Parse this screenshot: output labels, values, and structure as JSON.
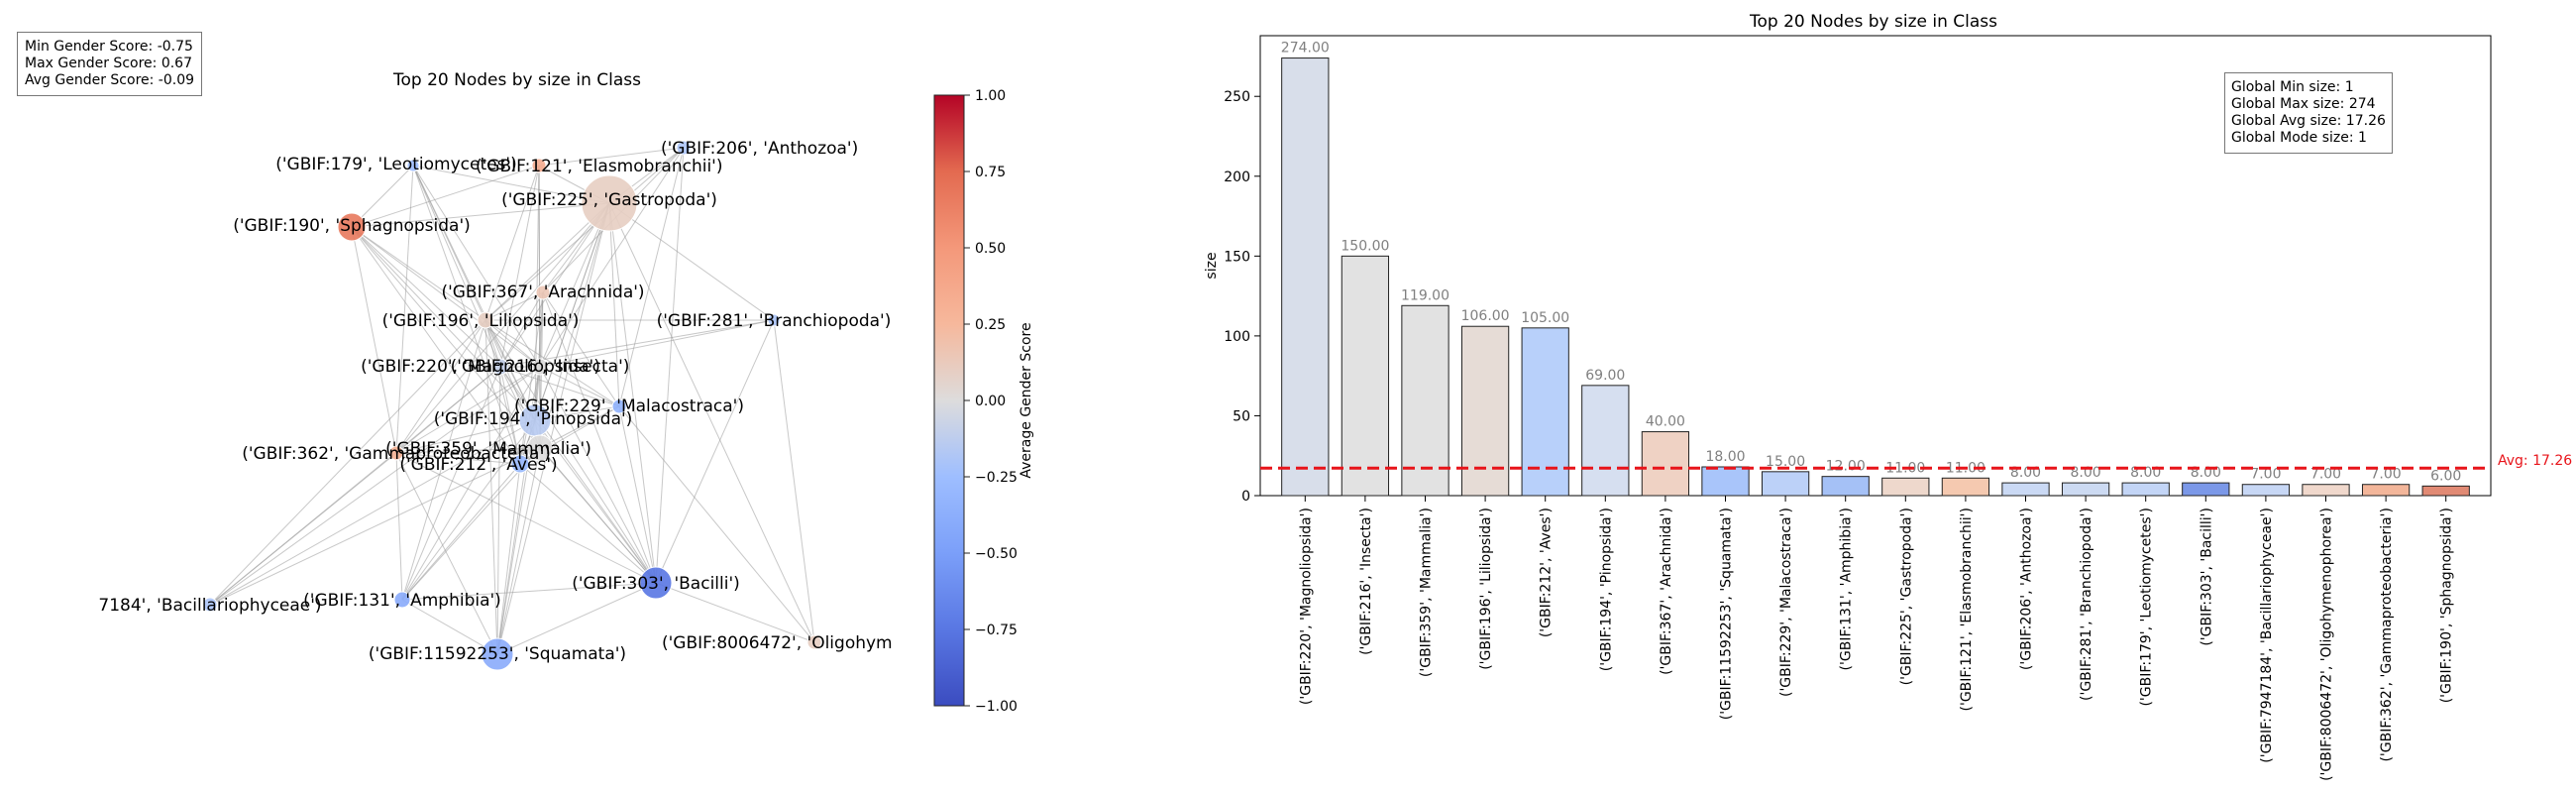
{
  "network_panel": {
    "title": "Top 20 Nodes by size in Class",
    "stats": {
      "min_label": "Min Gender Score: -0.75",
      "max_label": "Max Gender Score: 0.67",
      "avg_label": "Avg Gender Score: -0.09"
    },
    "colorbar": {
      "label": "Average Gender Score",
      "ticks": [
        "1.00",
        "0.75",
        "0.50",
        "0.25",
        "0.00",
        "−0.25",
        "−0.50",
        "−0.75",
        "−1.00"
      ],
      "range": [
        -1,
        1
      ],
      "colormap": "coolwarm"
    },
    "nodes": [
      {
        "label": "('GBIF:179', 'Leotiomycetes')",
        "score": -0.25,
        "size": 8
      },
      {
        "label": "('GBIF:121', 'Elasmobranchii')",
        "score": 0.35,
        "size": 11
      },
      {
        "label": "('GBIF:206', 'Anthozoa')",
        "score": -0.2,
        "size": 8
      },
      {
        "label": "('GBIF:225', 'Gastropoda')",
        "score": 0.1,
        "size": 11
      },
      {
        "label": "('GBIF:190', 'Sphagnopsida')",
        "score": 0.67,
        "size": 6
      },
      {
        "label": "('GBIF:367', 'Arachnida')",
        "score": 0.15,
        "size": 40
      },
      {
        "label": "('GBIF:196', 'Liliopsida')",
        "score": 0.1,
        "size": 106
      },
      {
        "label": "('GBIF:281', 'Branchiopoda')",
        "score": -0.2,
        "size": 8
      },
      {
        "label": "('GBIF:220', 'Magnoliopsida')",
        "score": -0.1,
        "size": 274
      },
      {
        "label": "('GBIF:216', 'Insecta')",
        "score": 0.0,
        "size": 150
      },
      {
        "label": "('GBIF:229', 'Malacostraca')",
        "score": -0.35,
        "size": 15
      },
      {
        "label": "('GBIF:194', 'Pinopsida')",
        "score": -0.15,
        "size": 69
      },
      {
        "label": "('GBIF:362', 'Gammaproteobacteria')",
        "score": 0.3,
        "size": 7
      },
      {
        "label": "('GBIF:359', 'Mammalia')",
        "score": 0.0,
        "size": 119
      },
      {
        "label": "('GBIF:212', 'Aves')",
        "score": -0.3,
        "size": 105
      },
      {
        "label": "('GBIF:303', 'Bacilli')",
        "score": -0.75,
        "size": 8
      },
      {
        "label": "7184', 'Bacillariophyceae')",
        "score": -0.2,
        "size": 7
      },
      {
        "label": "('GBIF:131', 'Amphibia')",
        "score": -0.4,
        "size": 12
      },
      {
        "label": "('GBIF:8006472', 'Oligohym",
        "score": 0.1,
        "size": 7
      },
      {
        "label": "('GBIF:11592253', 'Squamata')",
        "score": -0.4,
        "size": 18
      }
    ]
  },
  "chart_data": {
    "type": "bar",
    "title": "Top 20 Nodes by size in Class",
    "xlabel": "",
    "ylabel": "size",
    "ylim": [
      0,
      288
    ],
    "yticks": [
      "0",
      "50",
      "100",
      "150",
      "200",
      "250"
    ],
    "categories": [
      "('GBIF:220', 'Magnoliopsida')",
      "('GBIF:216', 'Insecta')",
      "('GBIF:359', 'Mammalia')",
      "('GBIF:196', 'Liliopsida')",
      "('GBIF:212', 'Aves')",
      "('GBIF:194', 'Pinopsida')",
      "('GBIF:367', 'Arachnida')",
      "('GBIF:11592253', 'Squamata')",
      "('GBIF:229', 'Malacostraca')",
      "('GBIF:131', 'Amphibia')",
      "('GBIF:225', 'Gastropoda')",
      "('GBIF:121', 'Elasmobranchii')",
      "('GBIF:206', 'Anthozoa')",
      "('GBIF:281', 'Branchiopoda')",
      "('GBIF:179', 'Leotiomycetes')",
      "('GBIF:303', 'Bacilli')",
      "('GBIF:7947184', 'Bacillariophyceae')",
      "('GBIF:8006472', 'Oligohymenophorea')",
      "('GBIF:362', 'Gammaproteobacteria')",
      "('GBIF:190', 'Sphagnopsida')"
    ],
    "values": [
      274,
      150,
      119,
      106,
      105,
      69,
      40,
      18,
      15,
      12,
      11,
      11,
      8,
      8,
      8,
      8,
      7,
      7,
      7,
      6
    ],
    "value_labels": [
      "274.00",
      "150.00",
      "119.00",
      "106.00",
      "105.00",
      "69.00",
      "40.00",
      "18.00",
      "15.00",
      "12.00",
      "11.00",
      "11.00",
      "8.00",
      "8.00",
      "8.00",
      "8.00",
      "7.00",
      "7.00",
      "7.00",
      "6.00"
    ],
    "bar_colors": [
      "#d8deea",
      "#e2e2e2",
      "#e2e2e2",
      "#e6dcd6",
      "#b8d0fa",
      "#d6dff0",
      "#efd2c4",
      "#a9c5fa",
      "#bcd1f8",
      "#a5c1f6",
      "#eed8cc",
      "#f5c9b0",
      "#cad9f4",
      "#ccdaf2",
      "#c3d5f6",
      "#7b98e8",
      "#c7d7f5",
      "#f0d8cc",
      "#f3b69a",
      "#e18a74"
    ],
    "avg_line": {
      "value": 17.26,
      "label": "Avg: 17.26",
      "color": "#e8141a"
    },
    "global_stats": {
      "min_label": "Global Min size: 1",
      "max_label": "Global Max size: 274",
      "avg_label": "Global Avg size: 17.26",
      "mode_label": "Global Mode size: 1"
    }
  }
}
